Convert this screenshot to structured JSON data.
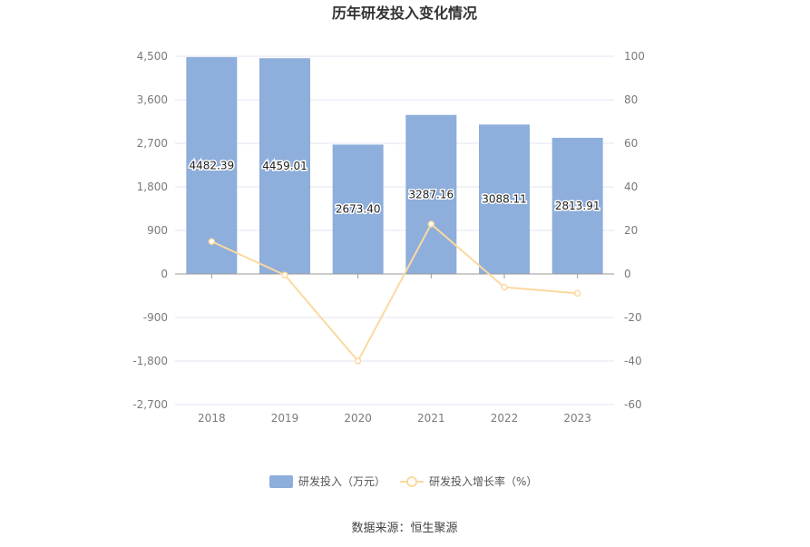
{
  "chart_data": {
    "type": "bar",
    "title": "历年研发投入变化情况",
    "categories": [
      "2018",
      "2019",
      "2020",
      "2021",
      "2022",
      "2023"
    ],
    "series": [
      {
        "name": "研发投入（万元）",
        "type": "bar",
        "axis": "left",
        "color": "#8eaedb",
        "values": [
          4482.39,
          4459.01,
          2673.4,
          3287.16,
          3088.11,
          2813.91
        ],
        "labels": [
          "4482.39",
          "4459.01",
          "2673.40",
          "3287.16",
          "3088.11",
          "2813.91"
        ]
      },
      {
        "name": "研发投入增长率（%）",
        "type": "line",
        "axis": "right",
        "color": "#fbd9a0",
        "values": [
          14.9,
          -0.5,
          -40.0,
          22.9,
          -6.1,
          -8.9
        ]
      }
    ],
    "y_left": {
      "ylim": [
        -2700,
        4500
      ],
      "ticks": [
        4500,
        3600,
        2700,
        1800,
        900,
        0,
        -900,
        -1800,
        -2700
      ],
      "tick_labels": [
        "4,500",
        "3,600",
        "2,700",
        "1,800",
        "900",
        "0",
        "-900",
        "-1,800",
        "-2,700"
      ]
    },
    "y_right": {
      "ylim": [
        -60,
        100
      ],
      "ticks": [
        100,
        80,
        60,
        40,
        20,
        0,
        -20,
        -40,
        -60
      ],
      "tick_labels": [
        "100",
        "80",
        "60",
        "40",
        "20",
        "0",
        "-20",
        "-40",
        "-60"
      ]
    },
    "grid": true,
    "legend_position": "bottom-center"
  },
  "footer": {
    "source": "数据来源：恒生聚源"
  }
}
